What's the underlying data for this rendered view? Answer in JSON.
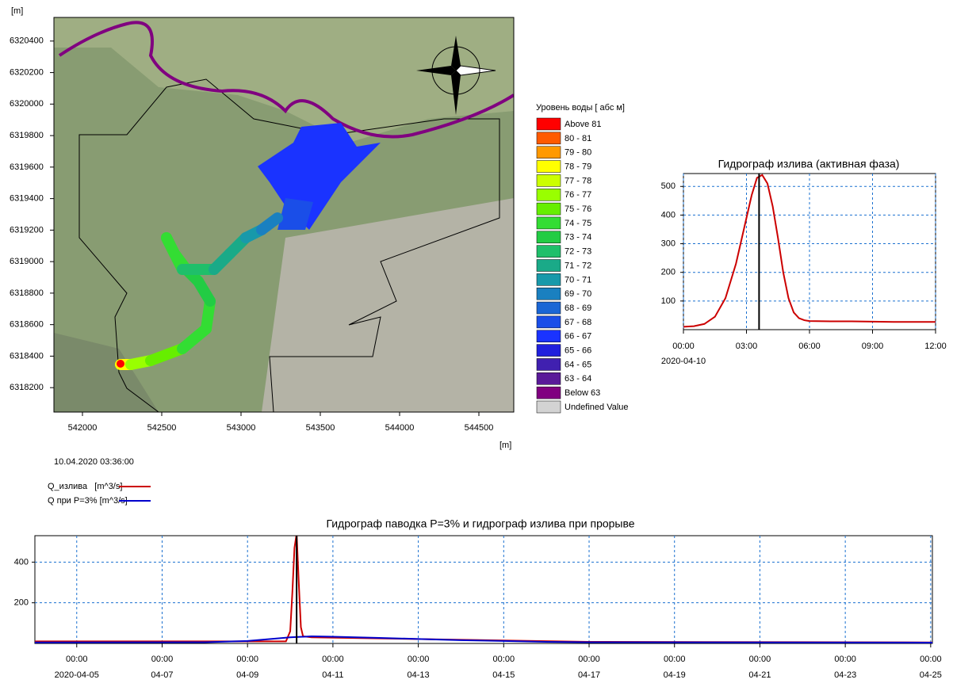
{
  "map": {
    "y_unit": "[m]",
    "x_unit": "[m]",
    "xlim": [
      541820,
      544720
    ],
    "ylim": [
      6318045,
      6320550
    ],
    "xticks": [
      542000,
      542500,
      543000,
      543500,
      544000,
      544500
    ],
    "yticks": [
      6318200,
      6318400,
      6318600,
      6318800,
      6319000,
      6319200,
      6319400,
      6319600,
      6319800,
      6320000,
      6320200,
      6320400
    ],
    "timestamp": "10.04.2020 03:36:00",
    "legend": {
      "title": "Уровень воды [ абс м]",
      "items": [
        {
          "label": "Above 81",
          "color": "#ff0000"
        },
        {
          "label": "80 - 81",
          "color": "#ff5a00"
        },
        {
          "label": "79 - 80",
          "color": "#ff9900"
        },
        {
          "label": "78 - 79",
          "color": "#ffff00"
        },
        {
          "label": "77 - 78",
          "color": "#ccff00"
        },
        {
          "label": "76 - 77",
          "color": "#99ff00"
        },
        {
          "label": "75 - 76",
          "color": "#66ee00"
        },
        {
          "label": "74 - 75",
          "color": "#33dd33"
        },
        {
          "label": "73 - 74",
          "color": "#22cc44"
        },
        {
          "label": "72 - 73",
          "color": "#1fbf6a"
        },
        {
          "label": "71 - 72",
          "color": "#1aaa88"
        },
        {
          "label": "70 - 71",
          "color": "#1899aa"
        },
        {
          "label": "69 - 70",
          "color": "#1a80c0"
        },
        {
          "label": "68 - 69",
          "color": "#1a66d5"
        },
        {
          "label": "67 - 68",
          "color": "#1a4ee8"
        },
        {
          "label": "66 - 67",
          "color": "#1a33ff"
        },
        {
          "label": "65 - 66",
          "color": "#2020dd"
        },
        {
          "label": "64 - 65",
          "color": "#4020b0"
        },
        {
          "label": "63 - 64",
          "color": "#5a1a99"
        },
        {
          "label": "Below 63",
          "color": "#800080"
        },
        {
          "label": "Undefined Value",
          "color": "#d3d3d3"
        }
      ]
    }
  },
  "chart_data": [
    {
      "type": "line",
      "title": "Гидрограф излива (активная фаза)",
      "xlim": [
        0,
        12
      ],
      "ylim": [
        0,
        545
      ],
      "xticks": [
        {
          "value": 0,
          "label": "00:00"
        },
        {
          "value": 3,
          "label": "03:00"
        },
        {
          "value": 6,
          "label": "06:00"
        },
        {
          "value": 9,
          "label": "09:00"
        },
        {
          "value": 12,
          "label": "12:00"
        }
      ],
      "x_date_label": "2020-04-10",
      "yticks": [
        100,
        200,
        300,
        400,
        500
      ],
      "grid": true,
      "grid_color": "#1a70d0",
      "marker_x": 3.6,
      "series": [
        {
          "color": "#cc0000",
          "x": [
            0,
            0.5,
            1,
            1.5,
            2,
            2.5,
            3,
            3.25,
            3.5,
            3.75,
            4,
            4.25,
            4.5,
            4.75,
            5,
            5.25,
            5.5,
            5.75,
            6,
            7,
            8,
            9,
            10,
            11,
            12
          ],
          "values": [
            10,
            12,
            20,
            45,
            110,
            230,
            390,
            470,
            530,
            540,
            510,
            430,
            320,
            200,
            110,
            60,
            40,
            33,
            30,
            29,
            29,
            28,
            27,
            27,
            27
          ]
        }
      ]
    },
    {
      "type": "line",
      "title": "Гидрограф паводка P=3% и гидрограф излива при прорыве",
      "xlim": [
        4.02,
        25.04
      ],
      "ylim": [
        0,
        530
      ],
      "xticks": [
        {
          "value": 5,
          "label": "00:00"
        },
        {
          "value": 7,
          "label": "00:00"
        },
        {
          "value": 9,
          "label": "00:00"
        },
        {
          "value": 11,
          "label": "00:00"
        },
        {
          "value": 13,
          "label": "00:00"
        },
        {
          "value": 15,
          "label": "00:00"
        },
        {
          "value": 17,
          "label": "00:00"
        },
        {
          "value": 19,
          "label": "00:00"
        },
        {
          "value": 21,
          "label": "00:00"
        },
        {
          "value": 23,
          "label": "00:00"
        },
        {
          "value": 25,
          "label": "00:00"
        }
      ],
      "xtick_dates": [
        "2020-04-05",
        "04-07",
        "04-09",
        "04-11",
        "04-13",
        "04-15",
        "04-17",
        "04-19",
        "04-21",
        "04-23",
        "04-25"
      ],
      "yticks": [
        200,
        400
      ],
      "grid": true,
      "grid_color": "#1a70d0",
      "marker_x": 10.15,
      "series": [
        {
          "name": "Q_излива   [m^3/s]",
          "color": "#cc0000",
          "x": [
            4.02,
            9.9,
            10.0,
            10.05,
            10.1,
            10.15,
            10.2,
            10.25,
            10.3,
            10.5,
            17.0,
            25.04
          ],
          "values": [
            10,
            10,
            60,
            250,
            470,
            540,
            300,
            80,
            35,
            30,
            8,
            5
          ]
        },
        {
          "name": "Q при P=3% [m^3/s]",
          "color": "#0000cc",
          "x": [
            4.02,
            8.0,
            9.0,
            10.0,
            10.5,
            11.0,
            12.0,
            13.0,
            14.0,
            15.0,
            16.0,
            17.0,
            25.04
          ],
          "values": [
            5,
            6,
            12,
            30,
            35,
            33,
            28,
            22,
            16,
            12,
            8,
            6,
            4
          ]
        }
      ]
    }
  ]
}
